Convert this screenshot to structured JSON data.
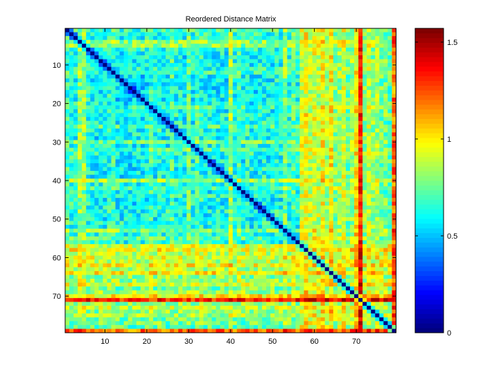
{
  "chart_data": {
    "type": "heatmap",
    "title": "Reordered Distance Matrix",
    "xlabel": "",
    "ylabel": "",
    "n": 79,
    "x_ticks": [
      10,
      20,
      30,
      40,
      50,
      60,
      70
    ],
    "y_ticks": [
      10,
      20,
      30,
      40,
      50,
      60,
      70
    ],
    "colormap": "jet",
    "clim": [
      0,
      1.571
    ],
    "colorbar_ticks": [
      0,
      0.5,
      1,
      1.5
    ],
    "colorbar_tick_labels": [
      "0",
      "0.5",
      "1",
      "1.5"
    ],
    "diagonal_value": 0,
    "note_values": "approximate per-index distance profile; cell value ≈ 0.8*max(p_i,p_j)+0.2*min(p_i,p_j) ± noise",
    "row_profile": [
      0.7,
      0.65,
      0.65,
      0.85,
      0.85,
      0.65,
      0.6,
      0.6,
      0.6,
      0.6,
      0.65,
      0.7,
      0.55,
      0.5,
      0.5,
      0.5,
      0.5,
      0.55,
      0.55,
      0.6,
      0.7,
      0.6,
      0.65,
      0.6,
      0.6,
      0.75,
      0.6,
      0.65,
      0.55,
      0.8,
      0.6,
      0.75,
      0.65,
      0.6,
      0.6,
      0.6,
      0.6,
      0.6,
      0.6,
      0.9,
      0.65,
      0.75,
      0.6,
      0.65,
      0.6,
      0.6,
      0.6,
      0.65,
      0.6,
      0.6,
      0.65,
      0.6,
      0.85,
      0.65,
      0.75,
      0.65,
      1.0,
      1.05,
      0.95,
      1.0,
      0.95,
      1.05,
      0.9,
      1.1,
      0.85,
      0.9,
      1.0,
      0.8,
      0.9,
      1.1,
      1.5,
      0.85,
      0.95,
      0.85,
      0.9,
      0.8,
      0.8,
      0.75,
      1.35
    ]
  }
}
